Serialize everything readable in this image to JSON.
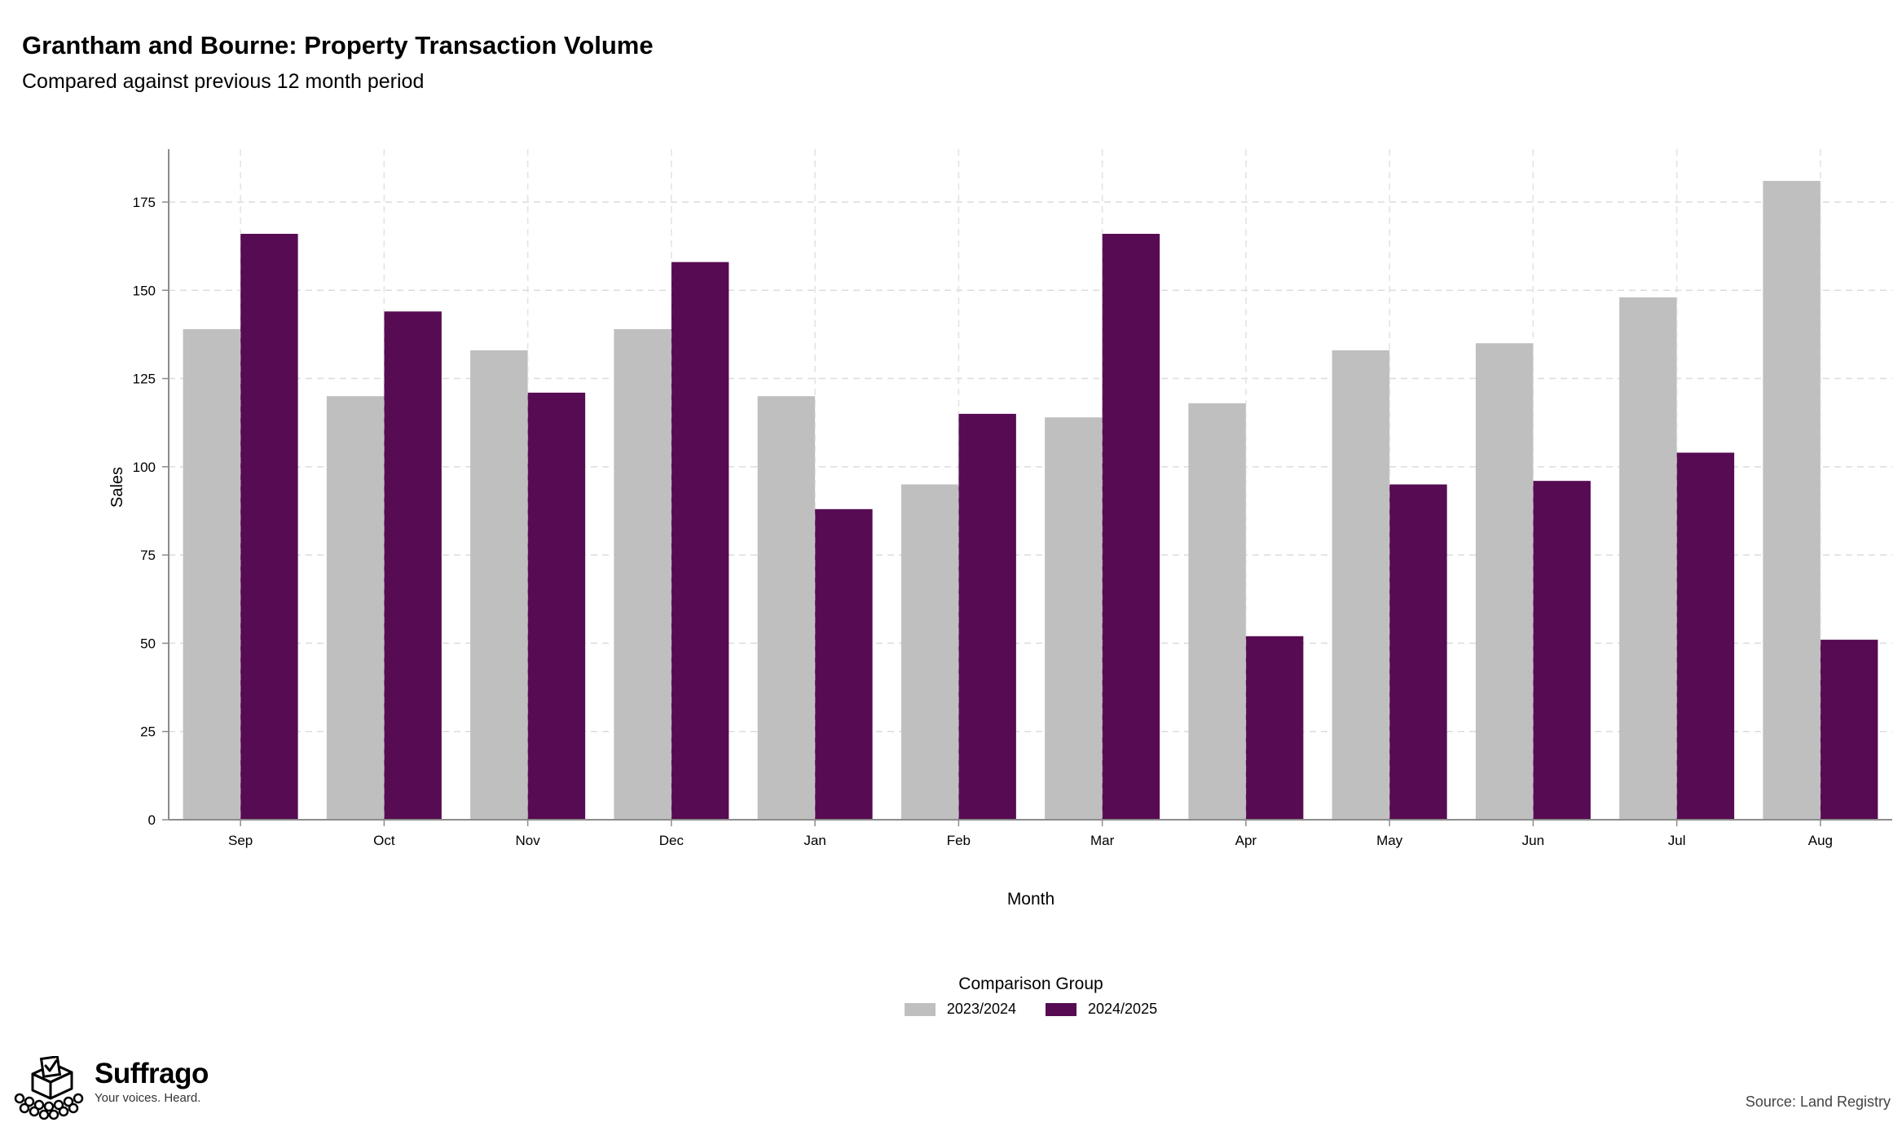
{
  "colors": {
    "series_2023_2024": "#bfbfbf",
    "series_2024_2025": "#560b52",
    "grid": "#dcdcdc",
    "axis": "#8c8c8c"
  },
  "branding": {
    "name": "Suffrago",
    "tagline": "Your voices. Heard.",
    "logo_icon": "ballot-box-crowd-icon"
  },
  "source": "Source: Land Registry",
  "chart_data": {
    "type": "bar",
    "title": "Grantham and Bourne: Property Transaction Volume",
    "subtitle": "Compared against previous 12 month period",
    "xlabel": "Month",
    "ylabel": "Sales",
    "ylim": [
      0,
      190
    ],
    "yticks": [
      0,
      25,
      50,
      75,
      100,
      125,
      150,
      175
    ],
    "grid": true,
    "legend": {
      "title": "Comparison Group",
      "placement": "bottom"
    },
    "categories": [
      "Sep",
      "Oct",
      "Nov",
      "Dec",
      "Jan",
      "Feb",
      "Mar",
      "Apr",
      "May",
      "Jun",
      "Jul",
      "Aug"
    ],
    "series": [
      {
        "name": "2023/2024",
        "color": "#bfbfbf",
        "values": [
          139,
          120,
          133,
          139,
          120,
          95,
          114,
          118,
          133,
          135,
          148,
          181
        ]
      },
      {
        "name": "2024/2025",
        "color": "#560b52",
        "values": [
          166,
          144,
          121,
          158,
          88,
          115,
          166,
          52,
          95,
          96,
          104,
          51
        ]
      }
    ]
  }
}
